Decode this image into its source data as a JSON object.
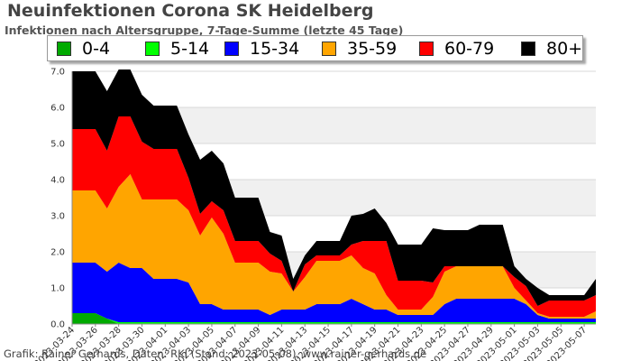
{
  "chart_data": {
    "type": "area",
    "title": "Neuinfektionen Corona SK Heidelberg",
    "subtitle": "Infektionen nach Altersgruppe, 7-Tage-Summe (letzte 45 Tage)",
    "footer": "Grafik: Rainer Gerhards, Daten: RKI (Stand: 2023-05-08), www.rainer-gerhards.de",
    "ylim": [
      0,
      7
    ],
    "yticks": [
      "0.0",
      "1.0",
      "2.0",
      "3.0",
      "4.0",
      "5.0",
      "6.0",
      "7.0"
    ],
    "grid": true,
    "x": [
      "2023-03-24",
      "2023-03-25",
      "2023-03-26",
      "2023-03-27",
      "2023-03-28",
      "2023-03-29",
      "2023-03-30",
      "2023-03-31",
      "2023-04-01",
      "2023-04-02",
      "2023-04-03",
      "2023-04-04",
      "2023-04-05",
      "2023-04-06",
      "2023-04-07",
      "2023-04-08",
      "2023-04-09",
      "2023-04-10",
      "2023-04-11",
      "2023-04-12",
      "2023-04-13",
      "2023-04-14",
      "2023-04-15",
      "2023-04-16",
      "2023-04-17",
      "2023-04-18",
      "2023-04-19",
      "2023-04-20",
      "2023-04-21",
      "2023-04-22",
      "2023-04-23",
      "2023-04-24",
      "2023-04-25",
      "2023-04-26",
      "2023-04-27",
      "2023-04-28",
      "2023-04-29",
      "2023-04-30",
      "2023-05-01",
      "2023-05-02",
      "2023-05-03",
      "2023-05-04",
      "2023-05-05",
      "2023-05-06",
      "2023-05-07",
      "2023-05-08"
    ],
    "xticks": [
      "2023-03-24",
      "2023-03-26",
      "2023-03-28",
      "2023-03-30",
      "2023-04-01",
      "2023-04-03",
      "2023-04-05",
      "2023-04-07",
      "2023-04-09",
      "2023-04-11",
      "2023-04-13",
      "2023-04-15",
      "2023-04-17",
      "2023-04-19",
      "2023-04-21",
      "2023-04-23",
      "2023-04-25",
      "2023-04-27",
      "2023-04-29",
      "2023-05-01",
      "2023-05-03",
      "2023-05-05",
      "2023-05-07"
    ],
    "legend_position": "top",
    "series": [
      {
        "name": "0-4",
        "color": "#00aa00",
        "values": [
          0.3,
          0.3,
          0.3,
          0.15,
          0,
          0,
          0,
          0,
          0,
          0,
          0,
          0,
          0,
          0,
          0,
          0,
          0,
          0,
          0,
          0,
          0,
          0,
          0,
          0,
          0,
          0,
          0,
          0,
          0,
          0,
          0,
          0,
          0,
          0,
          0,
          0,
          0,
          0,
          0,
          0,
          0,
          0,
          0,
          0,
          0,
          0
        ]
      },
      {
        "name": "5-14",
        "color": "#00ff00",
        "values": [
          0,
          0,
          0,
          0,
          0.05,
          0.05,
          0.05,
          0.05,
          0.05,
          0.05,
          0.05,
          0.05,
          0.05,
          0.05,
          0.05,
          0.05,
          0.05,
          0.05,
          0.05,
          0.05,
          0.05,
          0.05,
          0.05,
          0.05,
          0.05,
          0.05,
          0.05,
          0.05,
          0.05,
          0.05,
          0.05,
          0.05,
          0.05,
          0.05,
          0.05,
          0.05,
          0.05,
          0.05,
          0.05,
          0.05,
          0.05,
          0.05,
          0.05,
          0.05,
          0.05,
          0.05
        ]
      },
      {
        "name": "15-34",
        "color": "#0000ff",
        "values": [
          1.4,
          1.4,
          1.4,
          1.3,
          1.65,
          1.5,
          1.5,
          1.2,
          1.2,
          1.2,
          1.1,
          0.5,
          0.5,
          0.35,
          0.35,
          0.35,
          0.35,
          0.2,
          0.35,
          0.35,
          0.35,
          0.5,
          0.5,
          0.5,
          0.65,
          0.5,
          0.35,
          0.35,
          0.2,
          0.2,
          0.2,
          0.2,
          0.5,
          0.65,
          0.65,
          0.65,
          0.65,
          0.65,
          0.65,
          0.5,
          0.2,
          0.1,
          0.1,
          0.1,
          0.1,
          0.1
        ]
      },
      {
        "name": "35-59",
        "color": "#ffa500",
        "values": [
          2.0,
          2.0,
          2.0,
          1.75,
          2.1,
          2.6,
          1.9,
          2.2,
          2.2,
          2.2,
          2.0,
          1.9,
          2.4,
          2.1,
          1.3,
          1.3,
          1.3,
          1.2,
          1.0,
          0.5,
          0.9,
          1.2,
          1.2,
          1.2,
          1.2,
          1.0,
          1.0,
          0.4,
          0.15,
          0.15,
          0.15,
          0.5,
          0.9,
          0.9,
          0.9,
          0.9,
          0.9,
          0.9,
          0.3,
          0.1,
          0.05,
          0.05,
          0.05,
          0.05,
          0.05,
          0.2
        ]
      },
      {
        "name": "60-79",
        "color": "#ff0000",
        "values": [
          1.7,
          1.7,
          1.7,
          1.6,
          1.95,
          1.6,
          1.6,
          1.4,
          1.4,
          1.4,
          0.9,
          0.6,
          0.45,
          0.65,
          0.6,
          0.6,
          0.6,
          0.5,
          0.35,
          0,
          0.35,
          0.15,
          0.15,
          0.15,
          0.3,
          0.75,
          0.9,
          1.5,
          0.8,
          0.8,
          0.8,
          0.4,
          0.15,
          0,
          0,
          0,
          0,
          0,
          0.3,
          0.4,
          0.2,
          0.45,
          0.45,
          0.45,
          0.45,
          0.45
        ]
      },
      {
        "name": "80+",
        "color": "#000000",
        "values": [
          1.6,
          1.6,
          1.6,
          1.65,
          1.3,
          1.3,
          1.3,
          1.2,
          1.2,
          1.2,
          1.2,
          1.5,
          1.4,
          1.3,
          1.2,
          1.2,
          1.2,
          0.6,
          0.7,
          0.35,
          0.25,
          0.4,
          0.4,
          0.4,
          0.8,
          0.75,
          0.9,
          0.5,
          1.0,
          1.0,
          1.0,
          1.5,
          1.0,
          1.0,
          1.0,
          1.15,
          1.15,
          1.15,
          0.3,
          0.2,
          0.5,
          0.15,
          0.15,
          0.15,
          0.15,
          0.45
        ]
      }
    ]
  }
}
